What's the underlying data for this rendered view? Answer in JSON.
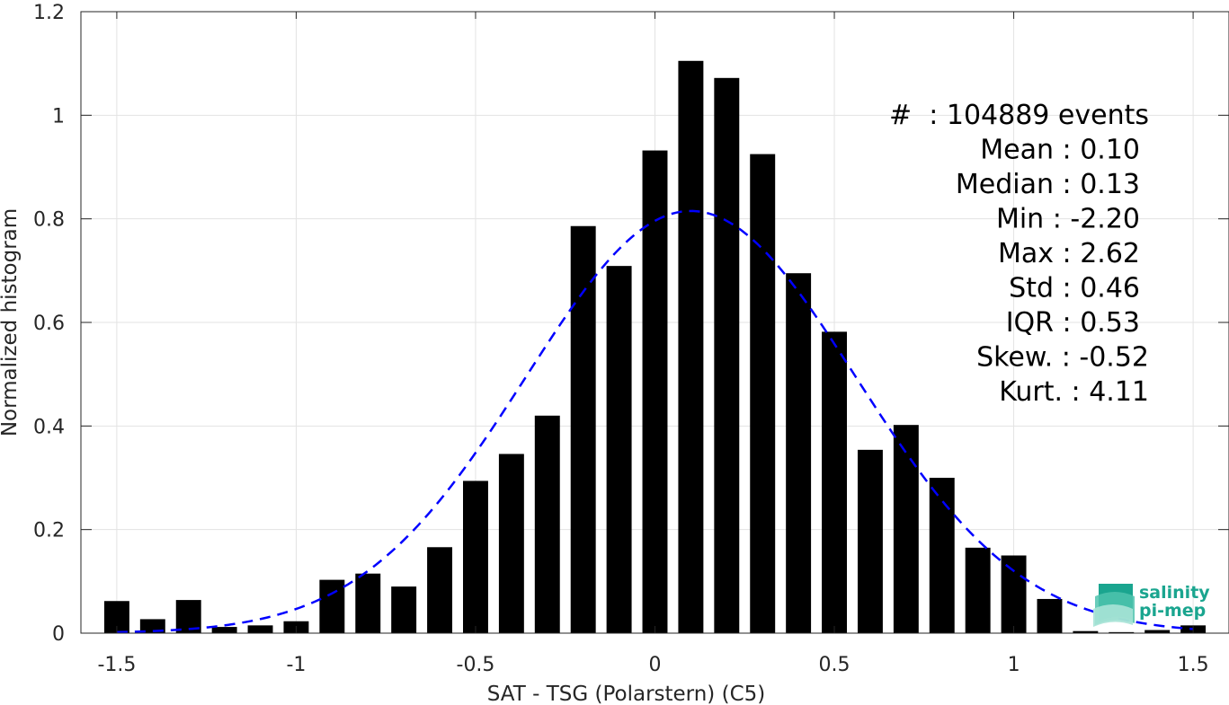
{
  "chart_data": {
    "type": "bar",
    "xlabel": "SAT - TSG (Polarstern) (C5)",
    "ylabel": "Normalized histogram",
    "xlim": [
      -1.6,
      1.6
    ],
    "ylim": [
      0,
      1.2
    ],
    "xticks": [
      "-1.5",
      "-1",
      "-0.5",
      "0",
      "0.5",
      "1",
      "1.5"
    ],
    "yticks": [
      "0",
      "0.2",
      "0.4",
      "0.6",
      "0.8",
      "1",
      "1.2"
    ],
    "grid": true,
    "bin_width": 0.1,
    "x": [
      -1.5,
      -1.4,
      -1.3,
      -1.2,
      -1.1,
      -1.0,
      -0.9,
      -0.8,
      -0.7,
      -0.6,
      -0.5,
      -0.4,
      -0.3,
      -0.2,
      -0.1,
      0.0,
      0.1,
      0.2,
      0.3,
      0.4,
      0.5,
      0.6,
      0.7,
      0.8,
      0.9,
      1.0,
      1.1,
      1.2,
      1.3,
      1.4,
      1.5
    ],
    "values": [
      0.062,
      0.027,
      0.064,
      0.012,
      0.015,
      0.023,
      0.103,
      0.115,
      0.09,
      0.166,
      0.294,
      0.346,
      0.42,
      0.786,
      0.709,
      0.932,
      1.105,
      1.072,
      0.925,
      0.695,
      0.582,
      0.354,
      0.402,
      0.3,
      0.165,
      0.15,
      0.066,
      0.004,
      0.002,
      0.006,
      0.015
    ],
    "fit": {
      "type": "gaussian",
      "mean": 0.1,
      "std": 0.46,
      "color": "#0000ff",
      "style": "dashed"
    },
    "bar_color": "#000000",
    "stats": [
      "#  : 104889 events",
      "Mean : 0.10",
      "Median : 0.13",
      "Min : -2.20",
      "Max : 2.62",
      "Std : 0.46",
      "IQR : 0.53",
      "Skew. : -0.52",
      "Kurt. : 4.11"
    ]
  },
  "logo": {
    "line1": "salinity",
    "line2": "pi-mep",
    "color": "#1aa58f"
  }
}
